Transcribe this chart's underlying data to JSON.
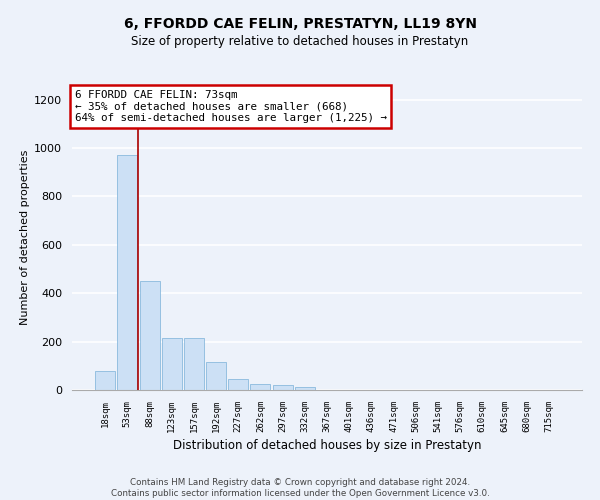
{
  "title": "6, FFORDD CAE FELIN, PRESTATYN, LL19 8YN",
  "subtitle": "Size of property relative to detached houses in Prestatyn",
  "xlabel": "Distribution of detached houses by size in Prestatyn",
  "ylabel": "Number of detached properties",
  "bar_color": "#cce0f5",
  "bar_edge_color": "#7ab0d8",
  "categories": [
    "18sqm",
    "53sqm",
    "88sqm",
    "123sqm",
    "157sqm",
    "192sqm",
    "227sqm",
    "262sqm",
    "297sqm",
    "332sqm",
    "367sqm",
    "401sqm",
    "436sqm",
    "471sqm",
    "506sqm",
    "541sqm",
    "576sqm",
    "610sqm",
    "645sqm",
    "680sqm",
    "715sqm"
  ],
  "values": [
    80,
    970,
    450,
    215,
    215,
    115,
    45,
    25,
    22,
    12,
    0,
    0,
    0,
    0,
    0,
    0,
    0,
    0,
    0,
    0,
    0
  ],
  "ylim": [
    0,
    1260
  ],
  "yticks": [
    0,
    200,
    400,
    600,
    800,
    1000,
    1200
  ],
  "red_line_x": 1.5,
  "annotation_line1": "6 FFORDD CAE FELIN: 73sqm",
  "annotation_line2": "← 35% of detached houses are smaller (668)",
  "annotation_line3": "64% of semi-detached houses are larger (1,225) →",
  "annotation_box_facecolor": "#ffffff",
  "annotation_box_edgecolor": "#cc0000",
  "footer_text": "Contains HM Land Registry data © Crown copyright and database right 2024.\nContains public sector information licensed under the Open Government Licence v3.0.",
  "bg_color": "#edf2fa",
  "grid_color": "#d8e4f0"
}
